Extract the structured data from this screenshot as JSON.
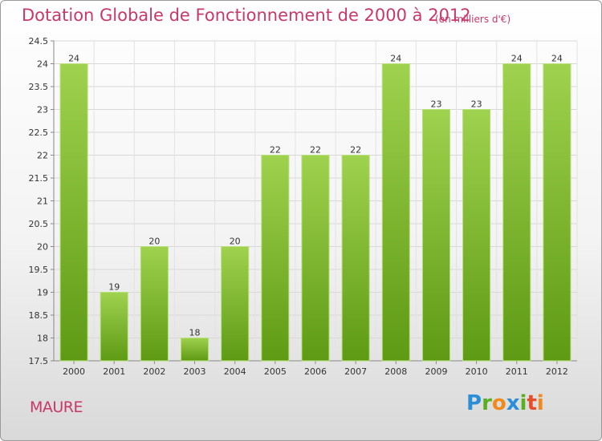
{
  "header": {
    "title": "Dotation Globale de Fonctionnement de 2000 à 2012",
    "subtitle": "(en milliers d'€)"
  },
  "footer": {
    "place": "MAURE",
    "logo_letters": [
      "P",
      "r",
      "o",
      "x",
      "i",
      "t",
      "i"
    ]
  },
  "colors": {
    "accent": "#c8386a",
    "bar_top": "#9fd24e",
    "bar_bottom": "#5e9a14"
  },
  "chart_data": {
    "type": "bar",
    "categories": [
      "2000",
      "2001",
      "2002",
      "2003",
      "2004",
      "2005",
      "2006",
      "2007",
      "2008",
      "2009",
      "2010",
      "2011",
      "2012"
    ],
    "values": [
      24,
      19,
      20,
      18,
      20,
      22,
      22,
      22,
      24,
      23,
      23,
      24,
      24
    ],
    "data_labels": [
      "24",
      "19",
      "20",
      "18",
      "20",
      "22",
      "22",
      "22",
      "24",
      "23",
      "23",
      "24",
      "24"
    ],
    "bar_values": [
      24,
      19,
      20,
      18,
      20,
      22,
      22,
      22,
      24,
      23,
      23,
      24,
      24
    ],
    "yticks": [
      "17.5",
      "18",
      "18.5",
      "19",
      "19.5",
      "20",
      "20.5",
      "21",
      "21.5",
      "22",
      "22.5",
      "23",
      "23.5",
      "24",
      "24.5"
    ],
    "ylim": [
      17.5,
      24.5
    ],
    "grid": true
  }
}
